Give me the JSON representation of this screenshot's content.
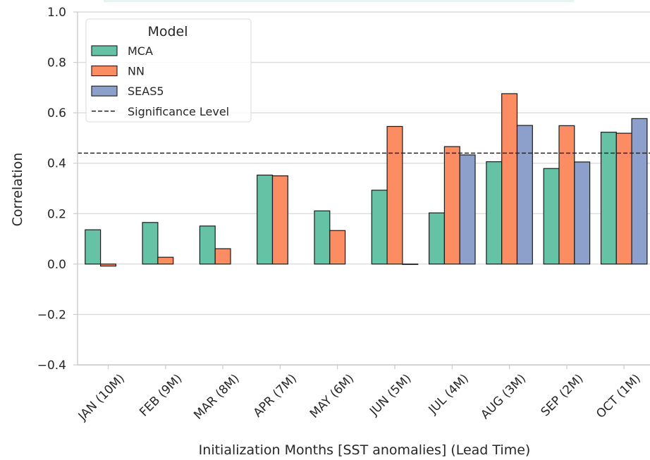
{
  "chart_data": {
    "type": "bar",
    "xlabel": "Initialization Months [SST anomalies] (Lead Time)",
    "ylabel": "Correlation",
    "ylim": [
      -0.4,
      1.0
    ],
    "yticks": [
      -0.4,
      -0.2,
      0.0,
      0.2,
      0.4,
      0.6,
      0.8,
      1.0
    ],
    "ytick_labels": [
      "−0.4",
      "−0.2",
      "0.0",
      "0.2",
      "0.4",
      "0.6",
      "0.8",
      "1.0"
    ],
    "grid": true,
    "legend": {
      "title": "Model",
      "placement": "top-left"
    },
    "categories": [
      "JAN (10M)",
      "FEB (9M)",
      "MAR (8M)",
      "APR (7M)",
      "MAY (6M)",
      "JUN (5M)",
      "JUL (4M)",
      "AUG (3M)",
      "SEP (2M)",
      "OCT (1M)"
    ],
    "series": [
      {
        "name": "MCA",
        "color": "#66c2a5",
        "values": [
          0.136,
          0.165,
          0.151,
          0.353,
          0.211,
          0.293,
          0.203,
          0.406,
          0.379,
          0.523
        ]
      },
      {
        "name": "NN",
        "color": "#fc8d62",
        "values": [
          -0.008,
          0.027,
          0.061,
          0.35,
          0.133,
          0.546,
          0.466,
          0.676,
          0.549,
          0.519
        ]
      },
      {
        "name": "SEAS5",
        "color": "#8da0cb",
        "values": [
          null,
          null,
          null,
          null,
          null,
          0.0,
          0.433,
          0.55,
          0.405,
          0.577
        ]
      }
    ],
    "reference_line": {
      "name": "Significance Level",
      "value": 0.44,
      "style": "dashed",
      "color": "#262626"
    }
  }
}
